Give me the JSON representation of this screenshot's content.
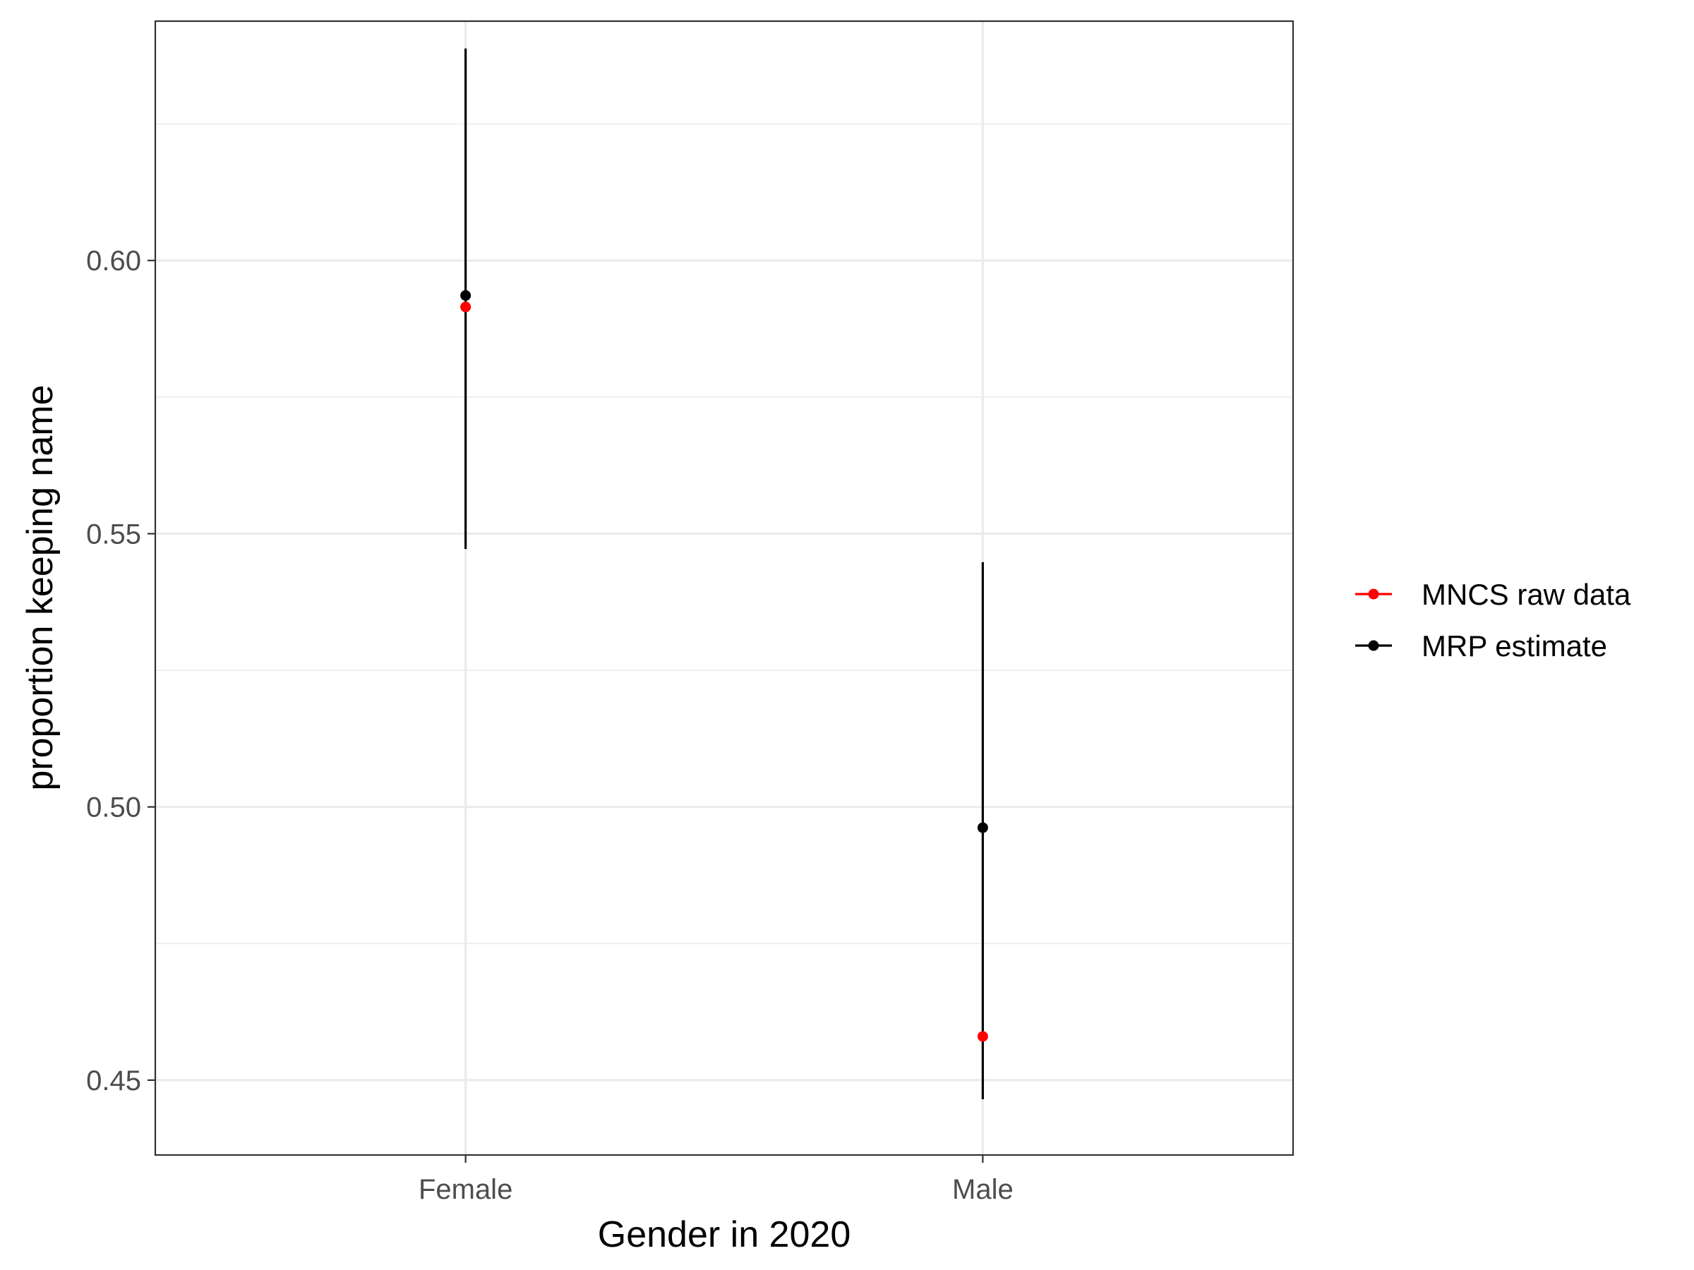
{
  "chart_data": {
    "type": "scatter",
    "title": "",
    "xlabel": "Gender in 2020",
    "ylabel": "proportion keeping name",
    "categories": [
      "Female",
      "Male"
    ],
    "ylim": [
      0.4363,
      0.6438
    ],
    "y_ticks": [
      0.45,
      0.5,
      0.55,
      0.6
    ],
    "y_tick_labels": [
      "0.45",
      "0.50",
      "0.55",
      "0.60"
    ],
    "grid": true,
    "legend_position": "right",
    "series": [
      {
        "name": "MNCS raw data",
        "color": "#ff0000",
        "values": [
          0.5915,
          0.458
        ]
      },
      {
        "name": "MRP estimate",
        "color": "#000000",
        "values": [
          0.5936,
          0.4962
        ],
        "lower": [
          0.5472,
          0.4465
        ],
        "upper": [
          0.6388,
          0.5448
        ]
      }
    ]
  }
}
